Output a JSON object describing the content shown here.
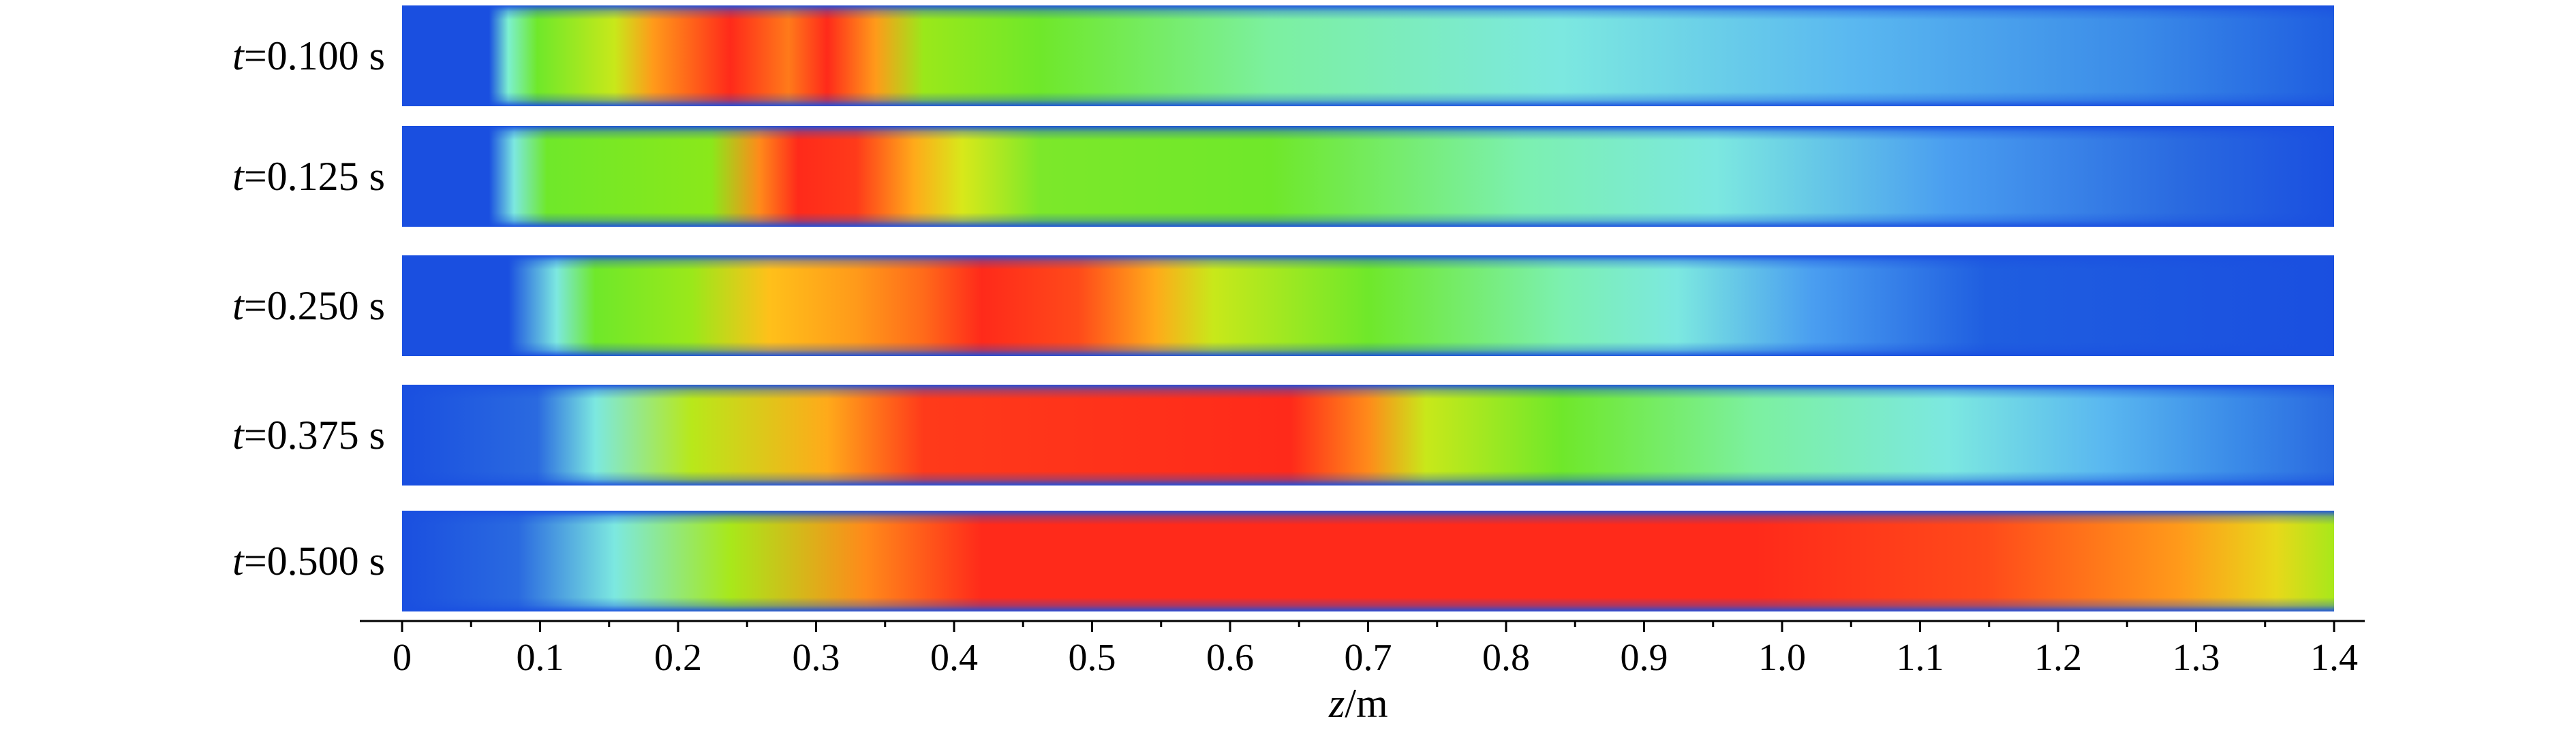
{
  "rows": [
    {
      "var": "t",
      "value": "=0.100 s",
      "stops": [
        [
          0.0,
          "#1a4fe0"
        ],
        [
          0.045,
          "#1a4fe0"
        ],
        [
          0.055,
          "#7cf0d0"
        ],
        [
          0.07,
          "#6fe82a"
        ],
        [
          0.11,
          "#c8e81a"
        ],
        [
          0.13,
          "#ff9a1a"
        ],
        [
          0.17,
          "#ff2a1a"
        ],
        [
          0.2,
          "#ff7a1a"
        ],
        [
          0.22,
          "#ff2a1a"
        ],
        [
          0.245,
          "#ff9a1a"
        ],
        [
          0.27,
          "#9ae81a"
        ],
        [
          0.33,
          "#6fe82a"
        ],
        [
          0.45,
          "#7cf0a0"
        ],
        [
          0.6,
          "#7ce8e0"
        ],
        [
          0.75,
          "#5ab8f0"
        ],
        [
          0.9,
          "#3a8ae8"
        ],
        [
          1.0,
          "#1f5ee0"
        ]
      ]
    },
    {
      "var": "t",
      "value": "=0.125 s",
      "stops": [
        [
          0.0,
          "#1a4fe0"
        ],
        [
          0.045,
          "#1a4fe0"
        ],
        [
          0.058,
          "#7ce8e0"
        ],
        [
          0.075,
          "#6fe82a"
        ],
        [
          0.16,
          "#8ae81a"
        ],
        [
          0.185,
          "#ff8a1a"
        ],
        [
          0.205,
          "#ff2a1a"
        ],
        [
          0.235,
          "#ff3a1a"
        ],
        [
          0.265,
          "#ffaa1a"
        ],
        [
          0.29,
          "#d8e81a"
        ],
        [
          0.33,
          "#7ce82a"
        ],
        [
          0.45,
          "#6fe82a"
        ],
        [
          0.58,
          "#7cf0b0"
        ],
        [
          0.68,
          "#7ce8e0"
        ],
        [
          0.8,
          "#4a9ef0"
        ],
        [
          0.92,
          "#2a6ae0"
        ],
        [
          1.0,
          "#1a4fe0"
        ]
      ]
    },
    {
      "var": "t",
      "value": "=0.250 s",
      "stops": [
        [
          0.0,
          "#1a4fe0"
        ],
        [
          0.055,
          "#1a4fe0"
        ],
        [
          0.08,
          "#7ce8e0"
        ],
        [
          0.1,
          "#6fe82a"
        ],
        [
          0.15,
          "#9ae81a"
        ],
        [
          0.19,
          "#ffc01a"
        ],
        [
          0.235,
          "#ff9a1a"
        ],
        [
          0.27,
          "#ff6a1a"
        ],
        [
          0.3,
          "#ff2a1a"
        ],
        [
          0.35,
          "#ff4a1a"
        ],
        [
          0.39,
          "#ffaa1a"
        ],
        [
          0.42,
          "#c8e81a"
        ],
        [
          0.5,
          "#6fe82a"
        ],
        [
          0.6,
          "#7cf0b0"
        ],
        [
          0.66,
          "#7ce8e0"
        ],
        [
          0.73,
          "#4a9ef0"
        ],
        [
          0.82,
          "#1f5ee0"
        ],
        [
          1.0,
          "#1a4fe0"
        ]
      ]
    },
    {
      "var": "t",
      "value": "=0.375 s",
      "stops": [
        [
          0.0,
          "#1a4fe0"
        ],
        [
          0.07,
          "#2a6ae0"
        ],
        [
          0.1,
          "#7ce8e0"
        ],
        [
          0.15,
          "#b8e81a"
        ],
        [
          0.22,
          "#ffaa1a"
        ],
        [
          0.27,
          "#ff3a1a"
        ],
        [
          0.46,
          "#ff2a1a"
        ],
        [
          0.5,
          "#ff8a1a"
        ],
        [
          0.53,
          "#c8e81a"
        ],
        [
          0.6,
          "#6fe82a"
        ],
        [
          0.7,
          "#7cf0a0"
        ],
        [
          0.8,
          "#7ce8e0"
        ],
        [
          0.88,
          "#5ab8f0"
        ],
        [
          0.95,
          "#3a8ae8"
        ],
        [
          1.0,
          "#2a6ae0"
        ]
      ]
    },
    {
      "var": "t",
      "value": "=0.500 s",
      "stops": [
        [
          0.0,
          "#1a4fe0"
        ],
        [
          0.06,
          "#2a6ae0"
        ],
        [
          0.11,
          "#7ce8e0"
        ],
        [
          0.17,
          "#a8e81a"
        ],
        [
          0.24,
          "#ff8a1a"
        ],
        [
          0.3,
          "#ff2a1a"
        ],
        [
          0.7,
          "#ff2a1a"
        ],
        [
          0.82,
          "#ff4a1a"
        ],
        [
          0.92,
          "#ff9a1a"
        ],
        [
          0.97,
          "#e8d81a"
        ],
        [
          1.0,
          "#a8e81a"
        ]
      ]
    }
  ],
  "axis": {
    "var": "z",
    "unit": "/m",
    "ticks": [
      "0",
      "0.1",
      "0.2",
      "0.3",
      "0.4",
      "0.5",
      "0.6",
      "0.7",
      "0.8",
      "0.9",
      "1.0",
      "1.1",
      "1.2",
      "1.3",
      "1.4"
    ]
  }
}
